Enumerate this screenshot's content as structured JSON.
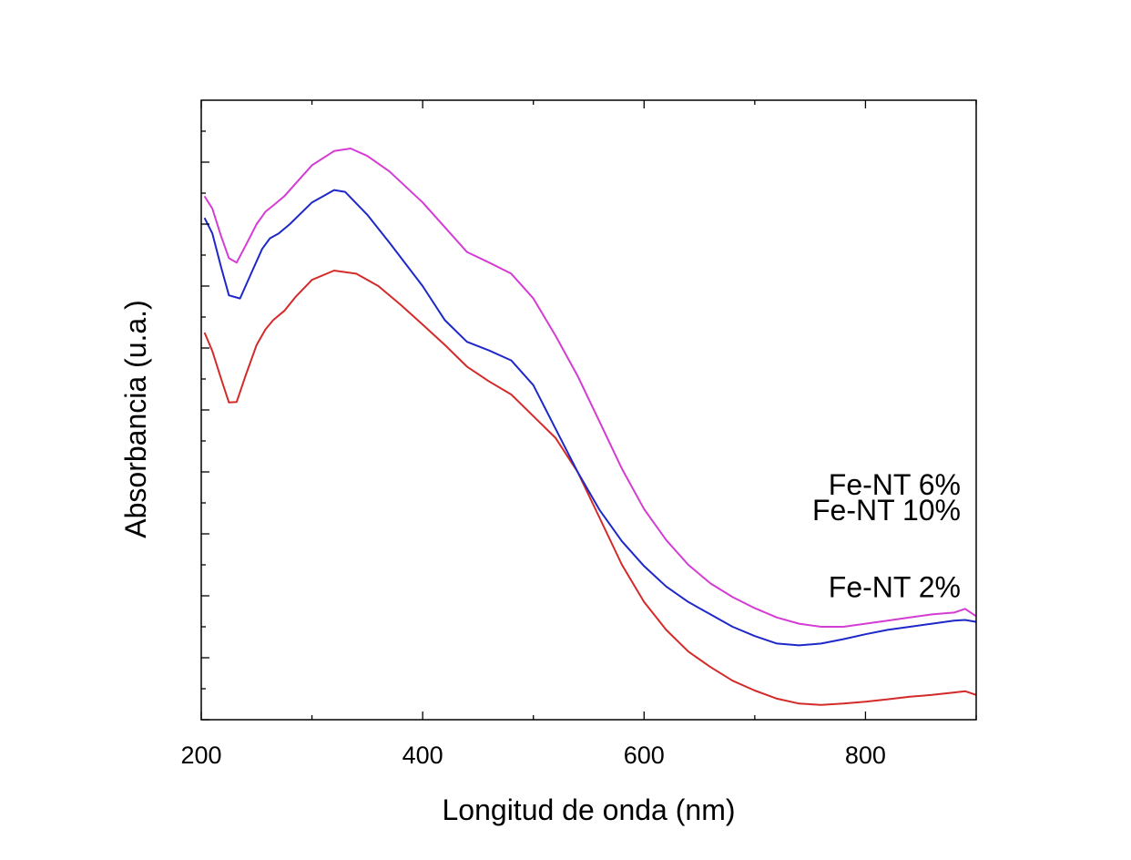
{
  "chart_data": {
    "type": "line",
    "title": "",
    "xlabel": "Longitud de onda (nm)",
    "ylabel": "Absorbancia (u.a.)",
    "xlim": [
      200,
      900
    ],
    "ylim": [
      0,
      100
    ],
    "x_ticks": [
      200,
      400,
      600,
      800
    ],
    "x_tick_labels": [
      "200",
      "400",
      "600",
      "800"
    ],
    "y_tick_labels_shown": false,
    "grid": false,
    "series": [
      {
        "name": "Fe-NT 2%",
        "color": "#d42a2a",
        "x": [
          203,
          210,
          218,
          225,
          232,
          240,
          250,
          258,
          265,
          275,
          285,
          300,
          320,
          340,
          360,
          380,
          400,
          420,
          440,
          460,
          480,
          500,
          520,
          540,
          560,
          580,
          600,
          620,
          640,
          660,
          680,
          700,
          720,
          740,
          760,
          780,
          800,
          820,
          840,
          860,
          880,
          890,
          900
        ],
        "y": [
          62.5,
          59.5,
          55.0,
          51.2,
          51.3,
          55.5,
          60.5,
          63.0,
          64.5,
          66.0,
          68.2,
          71.0,
          72.5,
          72.0,
          70.0,
          67.0,
          63.8,
          60.5,
          57.0,
          54.6,
          52.5,
          49.0,
          45.5,
          40.0,
          32.5,
          25.0,
          19.0,
          14.5,
          11.0,
          8.5,
          6.3,
          4.7,
          3.4,
          2.6,
          2.4,
          2.6,
          2.9,
          3.3,
          3.7,
          4.0,
          4.4,
          4.6,
          4.0
        ]
      },
      {
        "name": "Fe-NT 6%",
        "color": "#1e28c8",
        "x": [
          203,
          210,
          218,
          225,
          235,
          245,
          255,
          262,
          270,
          280,
          300,
          320,
          330,
          350,
          370,
          400,
          420,
          440,
          460,
          480,
          500,
          520,
          540,
          560,
          580,
          600,
          620,
          640,
          660,
          680,
          700,
          720,
          740,
          760,
          780,
          800,
          820,
          840,
          860,
          880,
          890,
          900
        ],
        "y": [
          81.0,
          78.5,
          73.0,
          68.5,
          68.0,
          72.0,
          76.0,
          77.7,
          78.5,
          80.0,
          83.5,
          85.5,
          85.2,
          81.5,
          77.0,
          70.0,
          64.5,
          61.0,
          59.6,
          58.0,
          54.0,
          47.0,
          40.0,
          33.8,
          28.8,
          24.8,
          21.5,
          19.0,
          17.0,
          15.0,
          13.5,
          12.3,
          12.0,
          12.3,
          13.0,
          13.8,
          14.5,
          15.0,
          15.5,
          16.0,
          16.1,
          15.8
        ]
      },
      {
        "name": "Fe-NT 10%",
        "color": "#d43cd4",
        "x": [
          203,
          210,
          218,
          225,
          232,
          240,
          250,
          258,
          265,
          275,
          285,
          300,
          320,
          335,
          350,
          370,
          400,
          420,
          440,
          460,
          480,
          500,
          520,
          540,
          560,
          580,
          600,
          620,
          640,
          660,
          680,
          700,
          720,
          740,
          760,
          780,
          800,
          820,
          840,
          860,
          880,
          890,
          900
        ],
        "y": [
          84.5,
          82.5,
          78.0,
          74.5,
          73.8,
          76.5,
          80.0,
          82.0,
          83.0,
          84.5,
          86.5,
          89.5,
          91.8,
          92.2,
          91.0,
          88.5,
          83.5,
          79.5,
          75.5,
          73.8,
          72.0,
          68.0,
          62.0,
          55.5,
          48.0,
          40.5,
          34.0,
          29.0,
          25.0,
          22.0,
          19.8,
          18.0,
          16.5,
          15.5,
          15.0,
          15.0,
          15.5,
          16.0,
          16.5,
          17.0,
          17.3,
          17.9,
          16.7
        ]
      }
    ]
  }
}
